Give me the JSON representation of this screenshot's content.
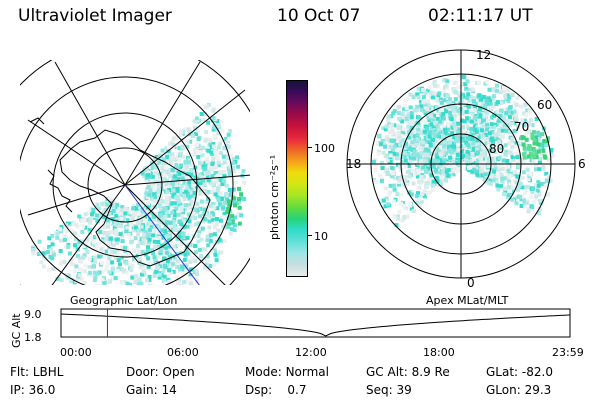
{
  "header": {
    "title": "Ultraviolet Imager",
    "date": "10 Oct 07",
    "time": "02:11:17 UT"
  },
  "left_panel": {
    "caption": "Geographic Lat/Lon"
  },
  "right_panel": {
    "caption": "Apex MLat/MLT",
    "mlt_labels": [
      "12",
      "18",
      "6",
      "0"
    ],
    "lat_labels": [
      "60",
      "70",
      "80"
    ]
  },
  "colorbar": {
    "label": "photon cm⁻²s⁻¹",
    "ticks": [
      "100",
      "10"
    ],
    "colors": [
      "#e8ecec",
      "#c8dede",
      "#9ee6e6",
      "#5fe0d8",
      "#32dcc8",
      "#28d278",
      "#64dc3c",
      "#a6e628",
      "#d2e614",
      "#f0dc0a",
      "#f5a01e",
      "#f06428",
      "#e6283c",
      "#c8143c",
      "#a00a46",
      "#6e0a5a",
      "#3c0a5a",
      "#14143c"
    ]
  },
  "timeline": {
    "ylabel": "GC Alt",
    "y_ticks": [
      "9.0",
      "1.8"
    ],
    "x_ticks": [
      "00:00",
      "06:00",
      "12:00",
      "18:00",
      "23:59"
    ],
    "marker_time_hours": 2.19,
    "marker_color": "#cc0000"
  },
  "status": {
    "flt_label": "Flt:",
    "flt_value": "LBHL",
    "ip_label": "IP:",
    "ip_value": "36.0",
    "door_label": "Door:",
    "door_value": "Open",
    "gain_label": "Gain:",
    "gain_value": "14",
    "mode_label": "Mode:",
    "mode_value": "Normal",
    "dsp_label": "Dsp:",
    "dsp_value": "0.7",
    "gcalt_label": "GC Alt:",
    "gcalt_value": "8.9 Re",
    "seq_label": "Seq:",
    "seq_value": "39",
    "glat_label": "GLat:",
    "glat_value": "-82.0",
    "glon_label": "GLon:",
    "glon_value": "29.3"
  }
}
